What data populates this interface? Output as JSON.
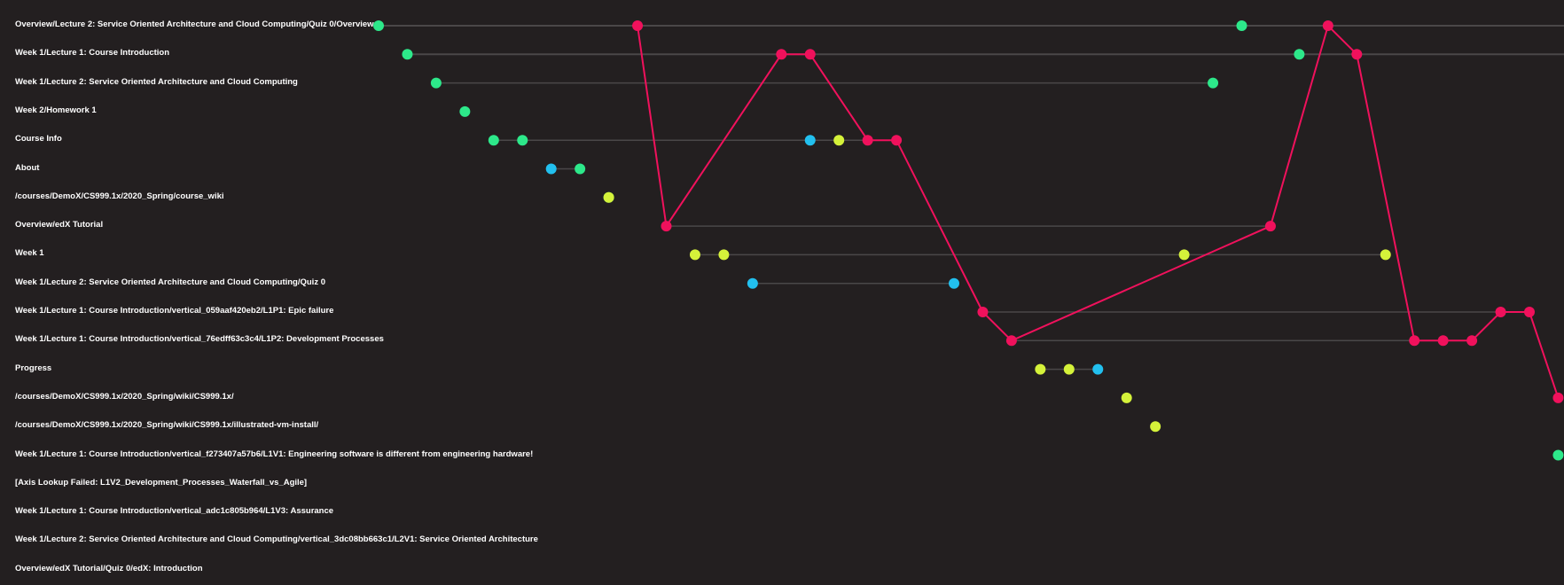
{
  "chart_data": {
    "type": "scatter",
    "title": "",
    "xlabel": "",
    "ylabel": "",
    "grid": false,
    "rows": [
      "Overview/Lecture 2: Service Oriented Architecture and Cloud Computing/Quiz 0/Overview",
      "Week 1/Lecture 1: Course Introduction",
      "Week 1/Lecture 2: Service Oriented Architecture and Cloud Computing",
      "Week 2/Homework 1",
      "Course Info",
      "About",
      "/courses/DemoX/CS999.1x/2020_Spring/course_wiki",
      "Overview/edX Tutorial",
      "Week 1",
      "Week 1/Lecture 2: Service Oriented Architecture and Cloud Computing/Quiz 0",
      "Week 1/Lecture 1: Course Introduction/vertical_059aaf420eb2/L1P1: Epic failure",
      "Week 1/Lecture 1: Course Introduction/vertical_76edff63c3c4/L1P2: Development Processes",
      "Progress",
      "/courses/DemoX/CS999.1x/2020_Spring/wiki/CS999.1x/",
      "/courses/DemoX/CS999.1x/2020_Spring/wiki/CS999.1x/illustrated-vm-install/",
      "Week 1/Lecture 1: Course Introduction/vertical_f273407a57b6/L1V1: Engineering software is different from engineering hardware!",
      "[Axis Lookup Failed: L1V2_Development_Processes_Waterfall_vs_Agile]",
      "Week 1/Lecture 1: Course Introduction/vertical_adc1c805b964/L1V3: Assurance",
      "Week 1/Lecture 2: Service Oriented Architecture and Cloud Computing/vertical_3dc08bb663c1/L2V1: Service Oriented Architecture",
      "Overview/edX Tutorial/Quiz 0/edX: Introduction"
    ],
    "colors": {
      "green": "#2de88a",
      "red": "#f0115c",
      "blue": "#22c0ef",
      "yellow": "#d5f23a",
      "track": "#4a4748"
    },
    "series": [
      {
        "color": "green",
        "points": [
          [
            0,
            0
          ],
          [
            1,
            1
          ],
          [
            2,
            2
          ],
          [
            3,
            3
          ],
          [
            4,
            4
          ],
          [
            5,
            4
          ],
          [
            7,
            5
          ],
          [
            8,
            6
          ],
          [
            30,
            0
          ],
          [
            32,
            1
          ],
          [
            29,
            2
          ],
          [
            41,
            15
          ]
        ]
      },
      {
        "color": "blue",
        "points": [
          [
            6,
            5
          ],
          [
            15,
            4
          ],
          [
            13,
            9
          ],
          [
            20,
            9
          ],
          [
            25,
            12
          ]
        ]
      },
      {
        "color": "yellow",
        "points": [
          [
            8,
            6
          ],
          [
            16,
            4
          ],
          [
            11,
            8
          ],
          [
            12,
            8
          ],
          [
            28,
            8
          ],
          [
            35,
            8
          ],
          [
            23,
            12
          ],
          [
            24,
            12
          ],
          [
            26,
            13
          ],
          [
            27,
            14
          ]
        ]
      },
      {
        "color": "red",
        "connected": true,
        "points": [
          [
            9,
            0
          ],
          [
            10,
            7
          ],
          [
            14,
            1
          ],
          [
            15,
            1
          ],
          [
            17,
            4
          ],
          [
            18,
            4
          ],
          [
            21,
            10
          ],
          [
            22,
            11
          ],
          [
            31,
            7
          ],
          [
            33,
            0
          ],
          [
            34,
            1
          ],
          [
            36,
            11
          ],
          [
            37,
            11
          ],
          [
            38,
            11
          ],
          [
            39,
            10
          ],
          [
            40,
            10
          ],
          [
            41,
            13
          ]
        ]
      }
    ],
    "tracks": [
      {
        "row": 0,
        "from": 0,
        "to": 41
      },
      {
        "row": 1,
        "from": 1,
        "to": 41
      },
      {
        "row": 2,
        "from": 2,
        "to": 29
      },
      {
        "row": 4,
        "from": 4,
        "to": 18
      },
      {
        "row": 5,
        "from": 6,
        "to": 7
      },
      {
        "row": 7,
        "from": 10,
        "to": 31
      },
      {
        "row": 8,
        "from": 11,
        "to": 35
      },
      {
        "row": 9,
        "from": 13,
        "to": 20
      },
      {
        "row": 10,
        "from": 21,
        "to": 40
      },
      {
        "row": 11,
        "from": 22,
        "to": 38
      },
      {
        "row": 12,
        "from": 23,
        "to": 25
      }
    ],
    "xlim": [
      0,
      41
    ],
    "ylim": [
      0,
      19
    ]
  }
}
